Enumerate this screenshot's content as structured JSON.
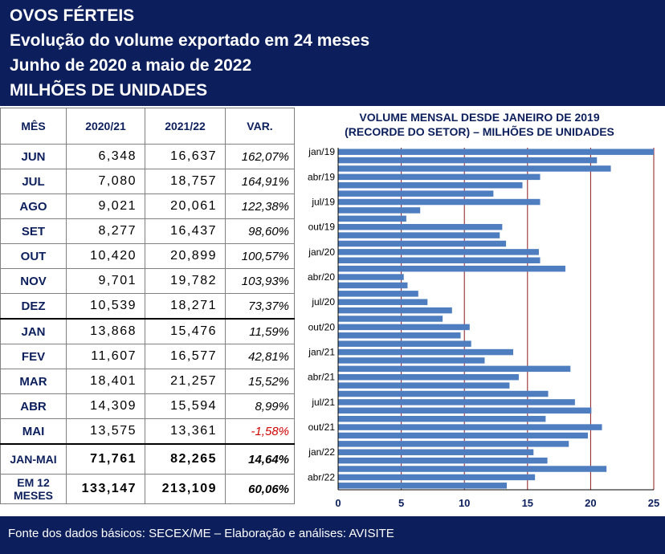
{
  "header": {
    "line1": "OVOS FÉRTEIS",
    "line2": "Evolução do volume exportado em 24 meses",
    "line3": "Junho de 2020 a maio de 2022",
    "line4": "MILHÕES DE UNIDADES"
  },
  "table": {
    "columns": [
      "MÊS",
      "2020/21",
      "2021/22",
      "VAR."
    ],
    "rows": [
      {
        "mes": "JUN",
        "a": "6,348",
        "b": "16,637",
        "var": "162,07%"
      },
      {
        "mes": "JUL",
        "a": "7,080",
        "b": "18,757",
        "var": "164,91%"
      },
      {
        "mes": "AGO",
        "a": "9,021",
        "b": "20,061",
        "var": "122,38%"
      },
      {
        "mes": "SET",
        "a": "8,277",
        "b": "16,437",
        "var": "98,60%"
      },
      {
        "mes": "OUT",
        "a": "10,420",
        "b": "20,899",
        "var": "100,57%"
      },
      {
        "mes": "NOV",
        "a": "9,701",
        "b": "19,782",
        "var": "103,93%"
      },
      {
        "mes": "DEZ",
        "a": "10,539",
        "b": "18,271",
        "var": "73,37%"
      },
      {
        "mes": "JAN",
        "a": "13,868",
        "b": "15,476",
        "var": "11,59%"
      },
      {
        "mes": "FEV",
        "a": "11,607",
        "b": "16,577",
        "var": "42,81%"
      },
      {
        "mes": "MAR",
        "a": "18,401",
        "b": "21,257",
        "var": "15,52%"
      },
      {
        "mes": "ABR",
        "a": "14,309",
        "b": "15,594",
        "var": "8,99%"
      },
      {
        "mes": "MAI",
        "a": "13,575",
        "b": "13,361",
        "var": "-1,58%"
      }
    ],
    "totals": [
      {
        "mes": "JAN-MAI",
        "a": "71,761",
        "b": "82,265",
        "var": "14,64%"
      },
      {
        "mes": "EM 12 MESES",
        "a": "133,147",
        "b": "213,109",
        "var": "60,06%"
      }
    ],
    "negative_color": "#d00000"
  },
  "chart_data": {
    "type": "bar",
    "orientation": "horizontal",
    "title": "VOLUME MENSAL DESDE JANEIRO DE 2019",
    "subtitle": "(RECORDE DO SETOR) – MILHÕES DE UNIDADES",
    "categories": [
      "jan/19",
      "fev/19",
      "mar/19",
      "abr/19",
      "mai/19",
      "jun/19",
      "jul/19",
      "ago/19",
      "set/19",
      "out/19",
      "nov/19",
      "dez/19",
      "jan/20",
      "fev/20",
      "mar/20",
      "abr/20",
      "mai/20",
      "jun/20",
      "jul/20",
      "ago/20",
      "set/20",
      "out/20",
      "nov/20",
      "dez/20",
      "jan/21",
      "fev/21",
      "mar/21",
      "abr/21",
      "mai/21",
      "jun/21",
      "jul/21",
      "ago/21",
      "set/21",
      "out/21",
      "nov/21",
      "dez/21",
      "jan/22",
      "fev/22",
      "mar/22",
      "abr/22",
      "mai/22"
    ],
    "tick_labels": [
      "jan/19",
      "abr/19",
      "jul/19",
      "out/19",
      "jan/20",
      "abr/20",
      "jul/20",
      "out/20",
      "jan/21",
      "abr/21",
      "jul/21",
      "out/21",
      "jan/22",
      "abr/22"
    ],
    "values": [
      25.0,
      20.5,
      21.6,
      16.0,
      14.6,
      12.3,
      16.0,
      6.5,
      5.4,
      13.0,
      12.8,
      13.3,
      15.9,
      16.0,
      18.0,
      5.2,
      5.5,
      6.348,
      7.08,
      9.021,
      8.277,
      10.42,
      9.701,
      10.539,
      13.868,
      11.607,
      18.401,
      14.309,
      13.575,
      16.637,
      18.757,
      20.061,
      16.437,
      20.899,
      19.782,
      18.271,
      15.476,
      16.577,
      21.257,
      15.594,
      13.361
    ],
    "xlim": [
      0,
      25
    ],
    "xticks": [
      "0",
      "5",
      "10",
      "15",
      "20",
      "25"
    ],
    "xtick_values": [
      0,
      5,
      10,
      15,
      20,
      25
    ],
    "grid": true,
    "bar_color": "#4f7ec0",
    "gridline_color": "#8b1a1a"
  },
  "footer": {
    "text": "Fonte dos dados básicos: SECEX/ME – Elaboração e análises: AVISITE"
  },
  "colors": {
    "header_bg": "#0c1f5c",
    "label_color": "#0c1f5c"
  }
}
